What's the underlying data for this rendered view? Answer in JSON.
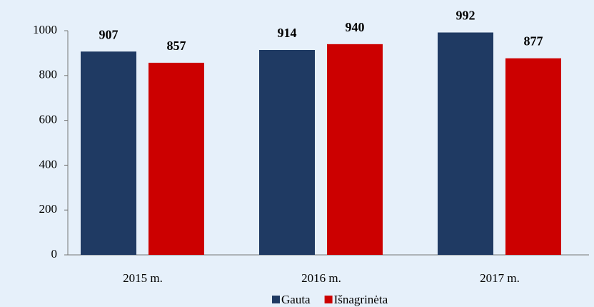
{
  "chart_data": {
    "type": "bar",
    "categories": [
      "2015 m.",
      "2016 m.",
      "2017 m."
    ],
    "series": [
      {
        "name": "Gauta",
        "color": "#1f3a63",
        "values": [
          907,
          914,
          992
        ]
      },
      {
        "name": "Išnagrinėta",
        "color": "#cc0000",
        "values": [
          857,
          940,
          877
        ]
      }
    ],
    "ylim": [
      0,
      1000
    ],
    "yticks": [
      0,
      200,
      400,
      600,
      800,
      1000
    ],
    "grid": false,
    "legend": "bottom"
  }
}
